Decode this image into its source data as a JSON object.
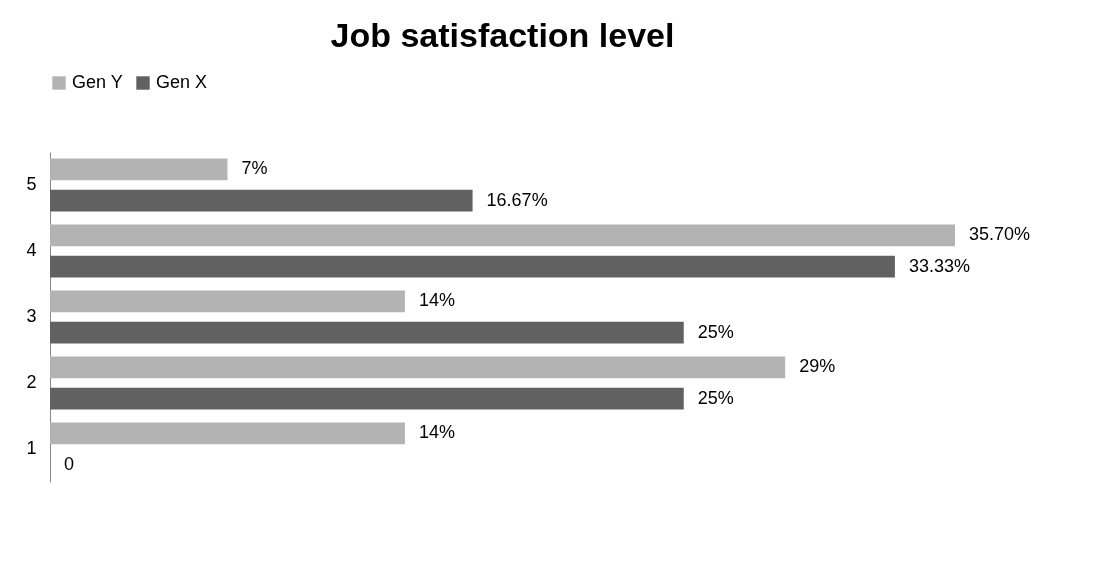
{
  "chart_data": {
    "type": "bar",
    "orientation": "horizontal",
    "title": "Job satisfaction level",
    "categories": [
      "5",
      "4",
      "3",
      "2",
      "1"
    ],
    "legend": "top",
    "series": [
      {
        "name": "Gen Y",
        "color": "#b3b3b3",
        "values": [
          7,
          35.7,
          14,
          29,
          14
        ],
        "value_labels": [
          "7%",
          "35.70%",
          "14%",
          "29%",
          "14%"
        ]
      },
      {
        "name": "Gen X",
        "color": "#616161",
        "values": [
          16.67,
          33.33,
          25,
          25,
          0
        ],
        "value_labels": [
          "16.67%",
          "33.33%",
          "25%",
          "25%",
          "0"
        ]
      }
    ]
  }
}
